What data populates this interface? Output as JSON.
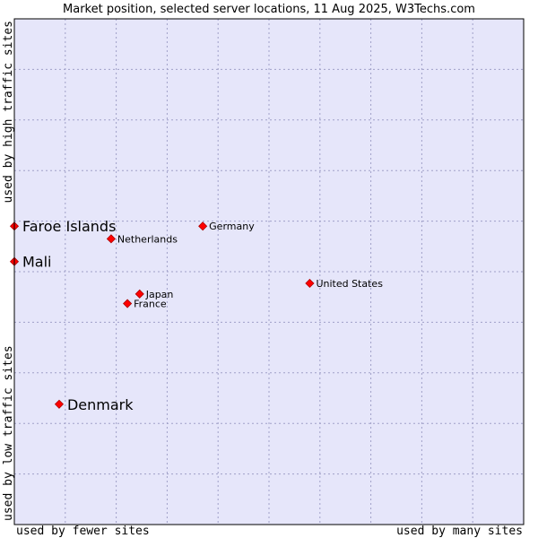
{
  "chart_data": {
    "type": "scatter",
    "title": "Market position, selected server locations, 11 Aug 2025, W3Techs.com",
    "xlabel_low": "used by fewer sites",
    "xlabel_high": "used by many sites",
    "ylabel_low": "used by low traffic sites",
    "ylabel_high": "used by high traffic sites",
    "xlim": [
      0,
      100
    ],
    "ylim": [
      0,
      100
    ],
    "grid": true,
    "colors": {
      "background": "#e6e6fa",
      "grid": "#a0a0c8",
      "marker": "#ff0000",
      "marker_edge": "#aa0000",
      "border": "#000000"
    },
    "points": [
      {
        "label": "Faroe Islands",
        "x": 0.0,
        "y": 59.0,
        "emphasis": true
      },
      {
        "label": "Mali",
        "x": 0.0,
        "y": 52.0,
        "emphasis": true
      },
      {
        "label": "Denmark",
        "x": 8.8,
        "y": 23.8,
        "emphasis": true
      },
      {
        "label": "Netherlands",
        "x": 19.0,
        "y": 56.5,
        "emphasis": false
      },
      {
        "label": "Germany",
        "x": 37.0,
        "y": 59.0,
        "emphasis": false
      },
      {
        "label": "Japan",
        "x": 24.6,
        "y": 45.6,
        "emphasis": false
      },
      {
        "label": "France",
        "x": 22.2,
        "y": 43.7,
        "emphasis": false
      },
      {
        "label": "United States",
        "x": 58.0,
        "y": 47.7,
        "emphasis": false
      }
    ]
  }
}
